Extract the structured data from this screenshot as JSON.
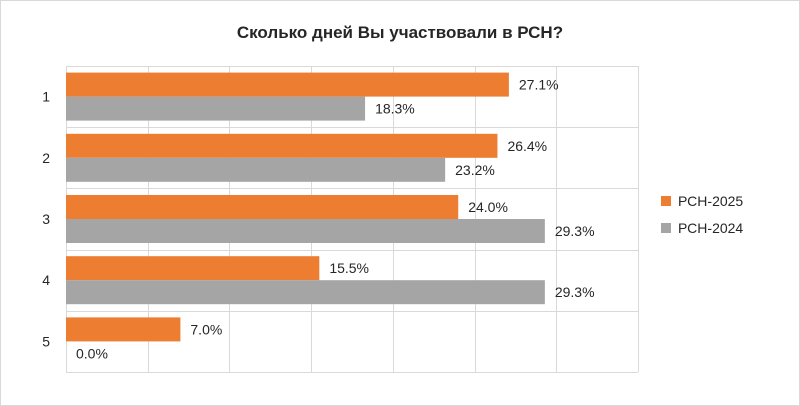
{
  "chart_data": {
    "type": "bar",
    "orientation": "horizontal",
    "title": "Сколько дней Вы участвовали в РСН?",
    "categories": [
      "1",
      "2",
      "3",
      "4",
      "5"
    ],
    "series": [
      {
        "name": "РСН-2025",
        "color": "#ed7d31",
        "values": [
          27.1,
          26.4,
          24.0,
          15.5,
          7.0
        ],
        "labels": [
          "27.1%",
          "26.4%",
          "24.0%",
          "15.5%",
          "7.0%"
        ]
      },
      {
        "name": "РСН-2024",
        "color": "#a5a5a5",
        "values": [
          18.3,
          23.2,
          29.3,
          29.3,
          0.0
        ],
        "labels": [
          "18.3%",
          "23.2%",
          "29.3%",
          "29.3%",
          "0.0%"
        ]
      }
    ],
    "xlim": [
      0,
      35
    ],
    "grid": true,
    "legend_position": "right"
  }
}
